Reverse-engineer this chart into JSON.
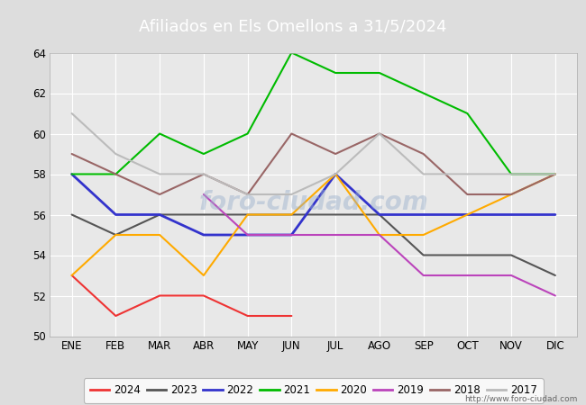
{
  "title": "Afiliados en Els Omellons a 31/5/2024",
  "title_color": "#ffffff",
  "title_bg_color": "#4472c4",
  "months": [
    "ENE",
    "FEB",
    "MAR",
    "ABR",
    "MAY",
    "JUN",
    "JUL",
    "AGO",
    "SEP",
    "OCT",
    "NOV",
    "DIC"
  ],
  "url": "http://www.foro-ciudad.com",
  "series": {
    "2024": {
      "data": [
        53,
        51,
        52,
        52,
        51,
        51,
        null,
        null,
        null,
        null,
        null,
        null
      ],
      "color": "#ee3333",
      "linewidth": 1.5
    },
    "2023": {
      "data": [
        56,
        55,
        56,
        56,
        56,
        56,
        56,
        56,
        54,
        54,
        54,
        53
      ],
      "color": "#555555",
      "linewidth": 1.5
    },
    "2022": {
      "data": [
        58,
        56,
        56,
        55,
        55,
        55,
        58,
        56,
        56,
        56,
        56,
        56
      ],
      "color": "#3333cc",
      "linewidth": 2.0
    },
    "2021": {
      "data": [
        58,
        58,
        60,
        59,
        60,
        64,
        63,
        63,
        62,
        61,
        58,
        58
      ],
      "color": "#00bb00",
      "linewidth": 1.5
    },
    "2020": {
      "data": [
        53,
        55,
        55,
        53,
        56,
        56,
        58,
        55,
        55,
        56,
        57,
        58
      ],
      "color": "#ffaa00",
      "linewidth": 1.5
    },
    "2019": {
      "data": [
        null,
        null,
        null,
        57,
        55,
        55,
        55,
        55,
        53,
        53,
        53,
        52
      ],
      "color": "#bb44bb",
      "linewidth": 1.5
    },
    "2018": {
      "data": [
        59,
        58,
        57,
        58,
        57,
        60,
        59,
        60,
        59,
        57,
        57,
        58
      ],
      "color": "#996666",
      "linewidth": 1.5
    },
    "2017": {
      "data": [
        61,
        59,
        58,
        58,
        57,
        57,
        58,
        60,
        58,
        58,
        58,
        58
      ],
      "color": "#bbbbbb",
      "linewidth": 1.5
    }
  },
  "legend_order": [
    "2024",
    "2023",
    "2022",
    "2021",
    "2020",
    "2019",
    "2018",
    "2017"
  ],
  "ylim": [
    50,
    64
  ],
  "yticks": [
    50,
    52,
    54,
    56,
    58,
    60,
    62,
    64
  ],
  "bg_color": "#dddddd",
  "plot_bg_color": "#e8e8e8",
  "grid_color": "#ffffff",
  "figsize": [
    6.5,
    4.5
  ],
  "dpi": 100
}
